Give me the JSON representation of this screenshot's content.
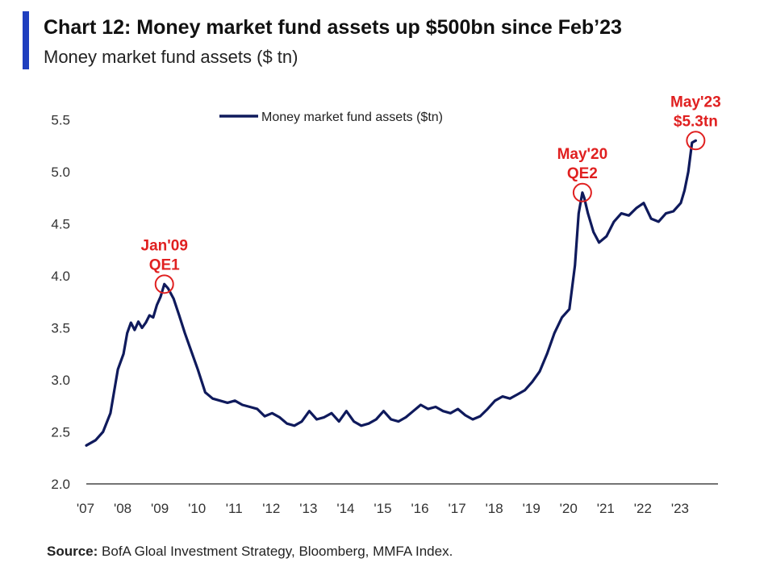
{
  "header": {
    "title": "Chart 12: Money market fund assets up $500bn since Feb’23",
    "subtitle": "Money market fund assets ($ tn)"
  },
  "source": {
    "label": "Source:",
    "text": "BofA Gloal Investment Strategy, Bloomberg, MMFA Index."
  },
  "colors": {
    "accent_bar": "#1f3fbf",
    "line": "#0f1a5c",
    "annotation": "#e02020"
  },
  "chart_data": {
    "type": "line",
    "title": "",
    "xlabel": "",
    "ylabel": "",
    "ylim": [
      2.0,
      5.6
    ],
    "yticks": [
      "2.0",
      "2.5",
      "3.0",
      "3.5",
      "4.0",
      "4.5",
      "5.0",
      "5.5"
    ],
    "xlim": [
      2007.0,
      2024.0
    ],
    "xticks": [
      "'07",
      "'08",
      "'09",
      "'10",
      "'11",
      "'12",
      "'13",
      "'14",
      "'15",
      "'16",
      "'17",
      "'18",
      "'19",
      "'20",
      "'21",
      "'22",
      "'23"
    ],
    "grid": false,
    "legend": "top-center",
    "series": [
      {
        "name": "Money market fund assets ($tn)",
        "x": [
          2007.0,
          2007.25,
          2007.45,
          2007.65,
          2007.85,
          2008.0,
          2008.1,
          2008.2,
          2008.3,
          2008.4,
          2008.5,
          2008.6,
          2008.7,
          2008.8,
          2008.9,
          2009.0,
          2009.1,
          2009.2,
          2009.35,
          2009.5,
          2009.65,
          2009.8,
          2010.0,
          2010.2,
          2010.4,
          2010.6,
          2010.8,
          2011.0,
          2011.2,
          2011.4,
          2011.6,
          2011.8,
          2012.0,
          2012.2,
          2012.4,
          2012.6,
          2012.8,
          2013.0,
          2013.2,
          2013.4,
          2013.6,
          2013.8,
          2014.0,
          2014.2,
          2014.4,
          2014.6,
          2014.8,
          2015.0,
          2015.2,
          2015.4,
          2015.6,
          2015.8,
          2016.0,
          2016.2,
          2016.4,
          2016.6,
          2016.8,
          2017.0,
          2017.2,
          2017.4,
          2017.6,
          2017.8,
          2018.0,
          2018.2,
          2018.4,
          2018.6,
          2018.8,
          2019.0,
          2019.2,
          2019.4,
          2019.6,
          2019.8,
          2020.0,
          2020.15,
          2020.25,
          2020.35,
          2020.4,
          2020.5,
          2020.65,
          2020.8,
          2021.0,
          2021.2,
          2021.4,
          2021.6,
          2021.8,
          2022.0,
          2022.2,
          2022.4,
          2022.6,
          2022.8,
          2023.0,
          2023.1,
          2023.2,
          2023.3,
          2023.4
        ],
        "values": [
          2.37,
          2.42,
          2.5,
          2.68,
          3.1,
          3.25,
          3.45,
          3.55,
          3.48,
          3.56,
          3.5,
          3.55,
          3.62,
          3.6,
          3.72,
          3.8,
          3.92,
          3.88,
          3.78,
          3.62,
          3.45,
          3.3,
          3.1,
          2.88,
          2.82,
          2.8,
          2.78,
          2.8,
          2.76,
          2.74,
          2.72,
          2.65,
          2.68,
          2.64,
          2.58,
          2.56,
          2.6,
          2.7,
          2.62,
          2.64,
          2.68,
          2.6,
          2.7,
          2.6,
          2.56,
          2.58,
          2.62,
          2.7,
          2.62,
          2.6,
          2.64,
          2.7,
          2.76,
          2.72,
          2.74,
          2.7,
          2.68,
          2.72,
          2.66,
          2.62,
          2.65,
          2.72,
          2.8,
          2.84,
          2.82,
          2.86,
          2.9,
          2.98,
          3.08,
          3.25,
          3.45,
          3.6,
          3.68,
          4.1,
          4.6,
          4.8,
          4.75,
          4.6,
          4.42,
          4.32,
          4.38,
          4.52,
          4.6,
          4.58,
          4.65,
          4.7,
          4.55,
          4.52,
          4.6,
          4.62,
          4.7,
          4.82,
          5.0,
          5.28,
          5.3
        ]
      }
    ],
    "annotations": [
      {
        "label": "Jan'09\nQE1",
        "x": 2009.1,
        "y": 3.92
      },
      {
        "label": "May'20\nQE2",
        "x": 2020.35,
        "y": 4.8
      },
      {
        "label": "May'23\n$5.3tn",
        "x": 2023.4,
        "y": 5.3
      }
    ]
  }
}
